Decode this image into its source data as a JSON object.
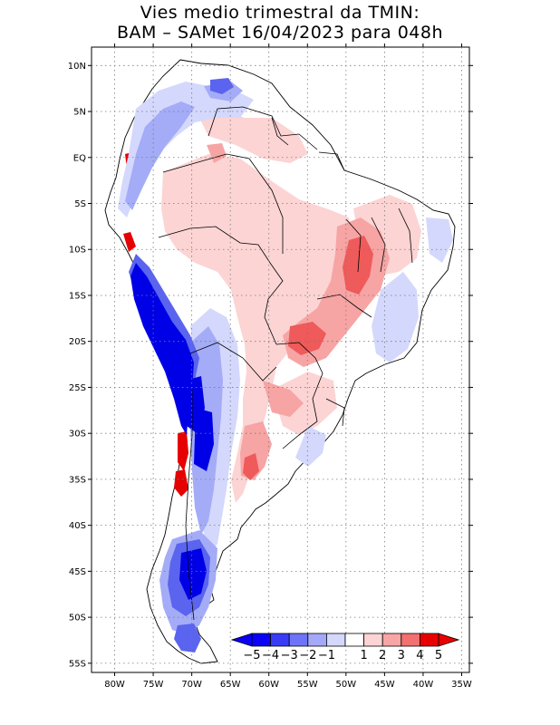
{
  "title": {
    "line1": "Vies medio trimestral da TMIN:",
    "line2": "BAM – SAMet 16/04/2023  para 048h"
  },
  "map": {
    "region": "South America",
    "lon_range": [
      -83,
      -34
    ],
    "lat_range": [
      -56,
      12
    ],
    "grid": "dotted",
    "lat_ticks": [
      {
        "value": 10,
        "label": "10N"
      },
      {
        "value": 5,
        "label": "5N"
      },
      {
        "value": 0,
        "label": "EQ"
      },
      {
        "value": -5,
        "label": "5S"
      },
      {
        "value": -10,
        "label": "10S"
      },
      {
        "value": -15,
        "label": "15S"
      },
      {
        "value": -20,
        "label": "20S"
      },
      {
        "value": -25,
        "label": "25S"
      },
      {
        "value": -30,
        "label": "30S"
      },
      {
        "value": -35,
        "label": "35S"
      },
      {
        "value": -40,
        "label": "40S"
      },
      {
        "value": -45,
        "label": "45S"
      },
      {
        "value": -50,
        "label": "50S"
      },
      {
        "value": -55,
        "label": "55S"
      }
    ],
    "lon_ticks": [
      {
        "value": -80,
        "label": "80W"
      },
      {
        "value": -75,
        "label": "75W"
      },
      {
        "value": -70,
        "label": "70W"
      },
      {
        "value": -65,
        "label": "65W"
      },
      {
        "value": -60,
        "label": "60W"
      },
      {
        "value": -55,
        "label": "55W"
      },
      {
        "value": -50,
        "label": "50W"
      },
      {
        "value": -45,
        "label": "45W"
      },
      {
        "value": -40,
        "label": "40W"
      },
      {
        "value": -35,
        "label": "35W"
      }
    ],
    "colors": {
      "land_neutral": "#ffffff",
      "pos_light": "#fcd4d4",
      "pos_medium": "#f7a4a4",
      "pos_strong": "#ef5a5a",
      "pos_extreme": "#e60000",
      "neg_light": "#d4d8fc",
      "neg_medium": "#a4acf7",
      "neg_strong": "#5a64ef",
      "neg_extreme": "#0000e6"
    }
  },
  "colorbar": {
    "labels": [
      "−5",
      "−4",
      "−3",
      "−2",
      "−1",
      "1",
      "2",
      "3",
      "4",
      "5"
    ],
    "colors": [
      "#0a00f5",
      "#3a3cf5",
      "#6e74f7",
      "#a3a9f8",
      "#d4d8fc",
      "#ffffff",
      "#fcd4d4",
      "#f8a5a5",
      "#f27070",
      "#e80000"
    ]
  }
}
